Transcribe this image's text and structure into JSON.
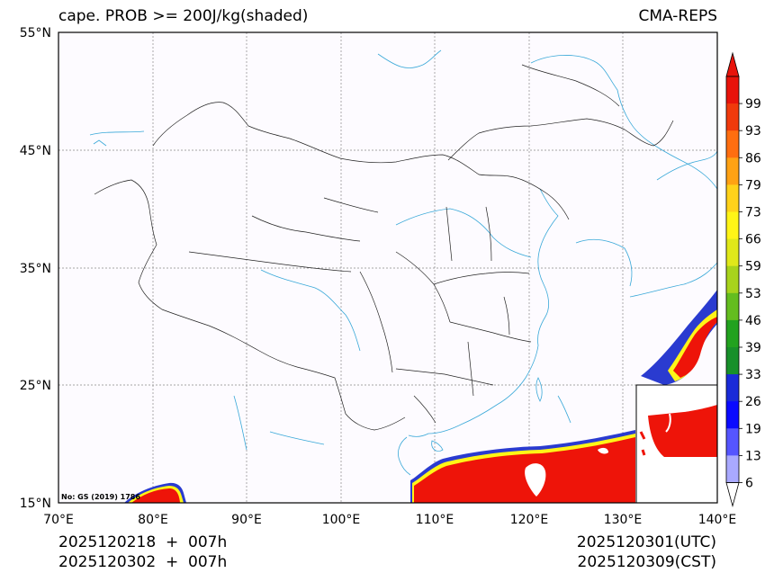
{
  "header": {
    "title_left": "cape. PROB >= 200J/kg(shaded)",
    "title_right": "CMA-REPS"
  },
  "map": {
    "lat_labels": [
      "55°N",
      "45°N",
      "35°N",
      "25°N",
      "15°N"
    ],
    "lon_labels": [
      "70°E",
      "80°E",
      "90°E",
      "100°E",
      "110°E",
      "120°E",
      "130°E",
      "140°E"
    ],
    "lat_range": [
      15,
      55
    ],
    "lon_range": [
      70,
      140
    ],
    "review_number": "No: GS (2019) 1786",
    "colors": {
      "frame": "#000000",
      "grid": "#888888",
      "water": "#39a8d8",
      "border": "#222222",
      "background": "#fdfbff"
    }
  },
  "colorbar": {
    "levels": [
      "6",
      "13",
      "19",
      "26",
      "33",
      "39",
      "46",
      "53",
      "59",
      "66",
      "73",
      "79",
      "86",
      "93",
      "99"
    ],
    "colors": [
      "#ffffff",
      "#a9a9ff",
      "#5555ff",
      "#0a0aff",
      "#1a2bd8",
      "#18902a",
      "#22a21f",
      "#64bd1f",
      "#a8d31c",
      "#e0e81a",
      "#fff517",
      "#ffd21a",
      "#ffa214",
      "#ff6e10",
      "#f03a0c",
      "#e8130b"
    ]
  },
  "footer": {
    "init_utc": "2025120218  +  007h",
    "init_cst": "2025120302  +  007h",
    "valid_utc": "2025120301(UTC)",
    "valid_cst": "2025120309(CST)"
  }
}
